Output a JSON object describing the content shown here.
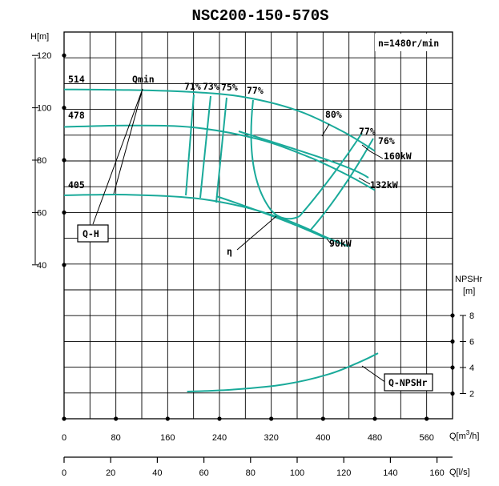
{
  "chart_data": {
    "type": "line",
    "title": "NSC200-150-570S",
    "speed": "n=1480r/min",
    "x_axis_m3h": {
      "label": "Q[m³/h]",
      "label_main": "Q[m",
      "label_sup": "3",
      "label_end": "/h]",
      "ticks": [
        "0",
        "80",
        "160",
        "240",
        "320",
        "400",
        "480",
        "560"
      ],
      "range": [
        0,
        600
      ]
    },
    "x_axis_ls": {
      "label": "Q[l/s]",
      "ticks": [
        "0",
        "20",
        "40",
        "60",
        "80",
        "100",
        "120",
        "140",
        "160"
      ],
      "range": [
        0,
        166.67
      ]
    },
    "y_axis_head": {
      "label": "H[m]",
      "ticks": [
        "120",
        "100",
        "80",
        "60",
        "40"
      ],
      "range": [
        30,
        130
      ]
    },
    "y_axis_npshr": {
      "label_line1": "NPSHr",
      "label_line2": "[m]",
      "ticks": [
        "8",
        "6",
        "4",
        "2"
      ],
      "range": [
        0,
        8
      ]
    },
    "series": [
      {
        "name": "Q-H 514",
        "label": "514",
        "points": [
          [
            0,
            107
          ],
          [
            100,
            106.8
          ],
          [
            200,
            106
          ],
          [
            280,
            104
          ],
          [
            360,
            99
          ],
          [
            430,
            91
          ],
          [
            480,
            83.5
          ]
        ]
      },
      {
        "name": "Q-H 478",
        "label": "478",
        "points": [
          [
            0,
            92.7
          ],
          [
            100,
            93.2
          ],
          [
            200,
            92.5
          ],
          [
            300,
            88
          ],
          [
            380,
            81
          ],
          [
            440,
            74
          ],
          [
            480,
            68.5
          ]
        ]
      },
      {
        "name": "Q-H 405",
        "label": "405",
        "points": [
          [
            0,
            66.6
          ],
          [
            100,
            66.8
          ],
          [
            200,
            65.5
          ],
          [
            280,
            62
          ],
          [
            350,
            56.5
          ],
          [
            410,
            50
          ],
          [
            440,
            47
          ]
        ]
      },
      {
        "name": "Q-NPSHr",
        "points": [
          [
            190,
            2.15
          ],
          [
            260,
            2.3
          ],
          [
            340,
            2.7
          ],
          [
            410,
            3.5
          ],
          [
            460,
            4.5
          ],
          [
            485,
            5.1
          ]
        ]
      }
    ],
    "efficiency_labels": [
      "71%",
      "73%",
      "75%",
      "77%",
      "80%",
      "77%",
      "76%"
    ],
    "power_labels": [
      "160kW",
      "132kW",
      "90kW"
    ],
    "curve_labels": {
      "qmin": "Qmin",
      "qh": "Q-H",
      "eta": "η",
      "npshr": "Q-NPSHr"
    }
  }
}
